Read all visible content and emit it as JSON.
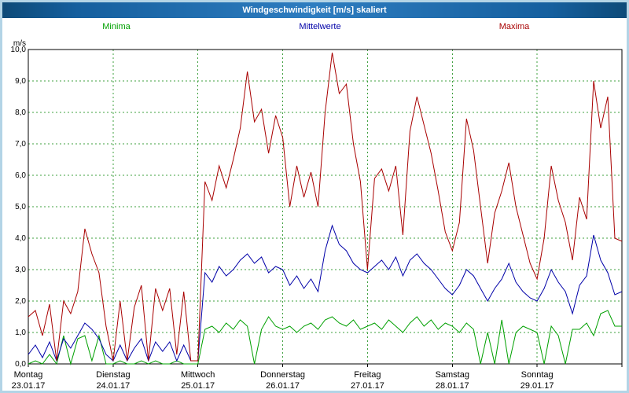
{
  "window": {
    "title": "Windgeschwindigkeit [m/s] skaliert"
  },
  "legend": [
    {
      "label": "Minima",
      "color": "#00a000"
    },
    {
      "label": "Mittelwerte",
      "color": "#0000a8"
    },
    {
      "label": "Maxima",
      "color": "#a80000"
    }
  ],
  "chart_data": {
    "type": "line",
    "title": "Windgeschwindigkeit [m/s] skaliert",
    "xlabel": "",
    "ylabel": "m/s",
    "ylim": [
      0,
      10
    ],
    "grid": "dashed",
    "legend_position": "top",
    "y_tick_labels": [
      "0,0",
      "1,0",
      "2,0",
      "3,0",
      "4,0",
      "5,0",
      "6,0",
      "7,0",
      "8,0",
      "9,0",
      "10,0"
    ],
    "days": [
      {
        "name": "Montag",
        "date": "23.01.17"
      },
      {
        "name": "Dienstag",
        "date": "24.01.17"
      },
      {
        "name": "Mittwoch",
        "date": "25.01.17"
      },
      {
        "name": "Donnerstag",
        "date": "26.01.17"
      },
      {
        "name": "Freitag",
        "date": "27.01.17"
      },
      {
        "name": "Samstag",
        "date": "28.01.17"
      },
      {
        "name": "Sonntag",
        "date": "29.01.17"
      }
    ],
    "points_per_day": 12,
    "series": [
      {
        "name": "Minima",
        "color": "#00a000",
        "values": [
          0.0,
          0.1,
          0.0,
          0.3,
          0.0,
          0.9,
          0.0,
          0.8,
          0.9,
          0.1,
          0.9,
          0.0,
          0.0,
          0.1,
          0.0,
          0.0,
          0.1,
          0.0,
          0.1,
          0.0,
          0.0,
          0.1,
          0.0,
          0.0,
          0.0,
          1.1,
          1.2,
          1.0,
          1.3,
          1.1,
          1.4,
          1.2,
          0.0,
          1.1,
          1.5,
          1.2,
          1.1,
          1.2,
          1.0,
          1.2,
          1.3,
          1.1,
          1.4,
          1.5,
          1.3,
          1.2,
          1.4,
          1.1,
          1.2,
          1.3,
          1.1,
          1.4,
          1.2,
          1.0,
          1.3,
          1.5,
          1.2,
          1.4,
          1.1,
          1.3,
          1.2,
          1.0,
          1.3,
          1.1,
          0.0,
          1.0,
          0.0,
          1.4,
          0.0,
          1.0,
          1.2,
          1.1,
          1.0,
          0.0,
          1.2,
          0.9,
          0.0,
          1.1,
          1.1,
          1.3,
          0.9,
          1.6,
          1.7,
          1.2,
          1.2
        ]
      },
      {
        "name": "Mittelwerte",
        "color": "#0000a8",
        "values": [
          0.3,
          0.6,
          0.2,
          0.7,
          0.1,
          0.8,
          0.5,
          0.9,
          1.3,
          1.1,
          0.8,
          0.3,
          0.1,
          0.6,
          0.1,
          0.5,
          0.8,
          0.1,
          0.7,
          0.4,
          0.7,
          0.1,
          0.6,
          0.1,
          0.1,
          2.9,
          2.6,
          3.1,
          2.8,
          3.0,
          3.3,
          3.5,
          3.2,
          3.4,
          2.9,
          3.1,
          3.0,
          2.5,
          2.8,
          2.4,
          2.7,
          2.3,
          3.6,
          4.4,
          3.8,
          3.6,
          3.2,
          3.0,
          2.9,
          3.1,
          3.3,
          3.0,
          3.4,
          2.8,
          3.3,
          3.5,
          3.2,
          3.0,
          2.7,
          2.4,
          2.2,
          2.5,
          3.0,
          2.8,
          2.4,
          2.0,
          2.4,
          2.7,
          3.2,
          2.6,
          2.3,
          2.1,
          2.0,
          2.4,
          3.0,
          2.6,
          2.3,
          1.6,
          2.5,
          2.8,
          4.1,
          3.3,
          2.9,
          2.2,
          2.3
        ]
      },
      {
        "name": "Maxima",
        "color": "#a80000",
        "values": [
          1.5,
          1.7,
          0.9,
          1.9,
          0.1,
          2.0,
          1.6,
          2.3,
          4.3,
          3.5,
          2.9,
          1.2,
          0.1,
          2.0,
          0.1,
          1.8,
          2.5,
          0.1,
          2.4,
          1.7,
          2.4,
          0.3,
          2.3,
          0.1,
          0.1,
          5.8,
          5.2,
          6.3,
          5.6,
          6.5,
          7.5,
          9.3,
          7.7,
          8.1,
          6.7,
          7.9,
          7.2,
          5.0,
          6.3,
          5.3,
          6.1,
          5.0,
          8.0,
          9.9,
          8.6,
          8.9,
          7.0,
          5.8,
          3.0,
          5.9,
          6.2,
          5.5,
          6.3,
          4.1,
          7.4,
          8.5,
          7.6,
          6.7,
          5.5,
          4.2,
          3.6,
          4.5,
          7.8,
          6.8,
          5.0,
          3.2,
          4.8,
          5.5,
          6.4,
          5.0,
          4.1,
          3.2,
          2.7,
          4.0,
          6.3,
          5.2,
          4.5,
          3.3,
          5.3,
          4.6,
          9.0,
          7.5,
          8.5,
          4.0,
          3.9
        ]
      }
    ]
  }
}
